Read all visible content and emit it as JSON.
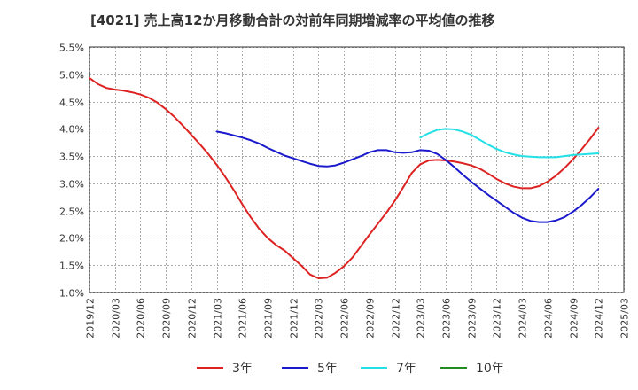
{
  "chart_data": {
    "type": "line",
    "title": "[4021]  売上高12か月移動合計の対前年同期増減率の平均値の推移",
    "xlabel": "",
    "ylabel": "",
    "ylim": [
      1.0,
      5.5
    ],
    "y_ticks": [
      "1.0%",
      "1.5%",
      "2.0%",
      "2.5%",
      "3.0%",
      "3.5%",
      "4.0%",
      "4.5%",
      "5.0%",
      "5.5%"
    ],
    "x_ticks": [
      "2019/12",
      "2020/03",
      "2020/06",
      "2020/09",
      "2020/12",
      "2021/03",
      "2021/06",
      "2021/09",
      "2021/12",
      "2022/03",
      "2022/06",
      "2022/09",
      "2022/12",
      "2023/03",
      "2023/06",
      "2023/09",
      "2023/12",
      "2024/03",
      "2024/06",
      "2024/09",
      "2024/12",
      "2025/03"
    ],
    "grid": true,
    "legend_position": "bottom",
    "series": [
      {
        "name": "3年",
        "color": "#dd2222",
        "points": [
          [
            "2019/12",
            4.93
          ],
          [
            "2020/01",
            4.82
          ],
          [
            "2020/02",
            4.75
          ],
          [
            "2020/03",
            4.72
          ],
          [
            "2020/04",
            4.7
          ],
          [
            "2020/05",
            4.67
          ],
          [
            "2020/06",
            4.63
          ],
          [
            "2020/07",
            4.57
          ],
          [
            "2020/08",
            4.48
          ],
          [
            "2020/09",
            4.36
          ],
          [
            "2020/10",
            4.22
          ],
          [
            "2020/11",
            4.06
          ],
          [
            "2020/12",
            3.89
          ],
          [
            "2021/01",
            3.72
          ],
          [
            "2021/02",
            3.54
          ],
          [
            "2021/03",
            3.34
          ],
          [
            "2021/04",
            3.12
          ],
          [
            "2021/05",
            2.88
          ],
          [
            "2021/06",
            2.62
          ],
          [
            "2021/07",
            2.38
          ],
          [
            "2021/08",
            2.17
          ],
          [
            "2021/09",
            2.0
          ],
          [
            "2021/10",
            1.87
          ],
          [
            "2021/11",
            1.77
          ],
          [
            "2021/12",
            1.63
          ],
          [
            "2022/01",
            1.49
          ],
          [
            "2022/02",
            1.33
          ],
          [
            "2022/03",
            1.26
          ],
          [
            "2022/04",
            1.27
          ],
          [
            "2022/05",
            1.36
          ],
          [
            "2022/06",
            1.48
          ],
          [
            "2022/07",
            1.64
          ],
          [
            "2022/08",
            1.85
          ],
          [
            "2022/09",
            2.06
          ],
          [
            "2022/10",
            2.26
          ],
          [
            "2022/11",
            2.46
          ],
          [
            "2022/12",
            2.68
          ],
          [
            "2023/01",
            2.93
          ],
          [
            "2023/02",
            3.19
          ],
          [
            "2023/03",
            3.35
          ],
          [
            "2023/04",
            3.42
          ],
          [
            "2023/05",
            3.43
          ],
          [
            "2023/06",
            3.42
          ],
          [
            "2023/07",
            3.4
          ],
          [
            "2023/08",
            3.37
          ],
          [
            "2023/09",
            3.33
          ],
          [
            "2023/10",
            3.27
          ],
          [
            "2023/11",
            3.18
          ],
          [
            "2023/12",
            3.08
          ],
          [
            "2024/01",
            3.0
          ],
          [
            "2024/02",
            2.94
          ],
          [
            "2024/03",
            2.91
          ],
          [
            "2024/04",
            2.91
          ],
          [
            "2024/05",
            2.95
          ],
          [
            "2024/06",
            3.03
          ],
          [
            "2024/07",
            3.14
          ],
          [
            "2024/08",
            3.28
          ],
          [
            "2024/09",
            3.44
          ],
          [
            "2024/10",
            3.62
          ],
          [
            "2024/11",
            3.81
          ],
          [
            "2024/12",
            4.02
          ]
        ]
      },
      {
        "name": "5年",
        "color": "#1a1acc",
        "points": [
          [
            "2021/03",
            3.95
          ],
          [
            "2021/04",
            3.92
          ],
          [
            "2021/05",
            3.88
          ],
          [
            "2021/06",
            3.84
          ],
          [
            "2021/07",
            3.79
          ],
          [
            "2021/08",
            3.73
          ],
          [
            "2021/09",
            3.65
          ],
          [
            "2021/10",
            3.58
          ],
          [
            "2021/11",
            3.51
          ],
          [
            "2021/12",
            3.46
          ],
          [
            "2022/01",
            3.41
          ],
          [
            "2022/02",
            3.36
          ],
          [
            "2022/03",
            3.32
          ],
          [
            "2022/04",
            3.31
          ],
          [
            "2022/05",
            3.33
          ],
          [
            "2022/06",
            3.38
          ],
          [
            "2022/07",
            3.44
          ],
          [
            "2022/08",
            3.5
          ],
          [
            "2022/09",
            3.57
          ],
          [
            "2022/10",
            3.61
          ],
          [
            "2022/11",
            3.61
          ],
          [
            "2022/12",
            3.57
          ],
          [
            "2023/01",
            3.56
          ],
          [
            "2023/02",
            3.57
          ],
          [
            "2023/03",
            3.61
          ],
          [
            "2023/04",
            3.6
          ],
          [
            "2023/05",
            3.54
          ],
          [
            "2023/06",
            3.43
          ],
          [
            "2023/07",
            3.3
          ],
          [
            "2023/08",
            3.16
          ],
          [
            "2023/09",
            3.03
          ],
          [
            "2023/10",
            2.91
          ],
          [
            "2023/11",
            2.79
          ],
          [
            "2023/12",
            2.68
          ],
          [
            "2024/01",
            2.57
          ],
          [
            "2024/02",
            2.46
          ],
          [
            "2024/03",
            2.37
          ],
          [
            "2024/04",
            2.31
          ],
          [
            "2024/05",
            2.29
          ],
          [
            "2024/06",
            2.29
          ],
          [
            "2024/07",
            2.32
          ],
          [
            "2024/08",
            2.38
          ],
          [
            "2024/09",
            2.48
          ],
          [
            "2024/10",
            2.6
          ],
          [
            "2024/11",
            2.74
          ],
          [
            "2024/12",
            2.9
          ]
        ]
      },
      {
        "name": "7年",
        "color": "#22e0e6",
        "points": [
          [
            "2023/03",
            3.84
          ],
          [
            "2023/04",
            3.92
          ],
          [
            "2023/05",
            3.98
          ],
          [
            "2023/06",
            4.0
          ],
          [
            "2023/07",
            3.99
          ],
          [
            "2023/08",
            3.95
          ],
          [
            "2023/09",
            3.89
          ],
          [
            "2023/10",
            3.8
          ],
          [
            "2023/11",
            3.71
          ],
          [
            "2023/12",
            3.63
          ],
          [
            "2024/01",
            3.57
          ],
          [
            "2024/02",
            3.53
          ],
          [
            "2024/03",
            3.5
          ],
          [
            "2024/04",
            3.49
          ],
          [
            "2024/05",
            3.48
          ],
          [
            "2024/06",
            3.48
          ],
          [
            "2024/07",
            3.48
          ],
          [
            "2024/08",
            3.5
          ],
          [
            "2024/09",
            3.52
          ],
          [
            "2024/10",
            3.53
          ],
          [
            "2024/11",
            3.54
          ],
          [
            "2024/12",
            3.55
          ]
        ]
      },
      {
        "name": "10年",
        "color": "#228b22",
        "points": []
      }
    ]
  }
}
